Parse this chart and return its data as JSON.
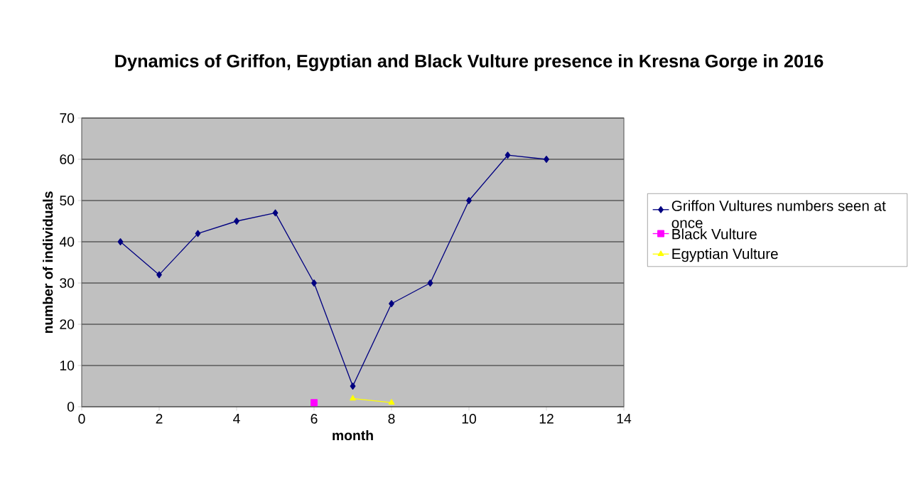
{
  "chart_data": {
    "type": "line",
    "title": "Dynamics of Griffon, Egyptian and Black Vulture presence in Kresna Gorge in 2016",
    "xlabel": "month",
    "ylabel": "number of individuals",
    "series": [
      {
        "name": "Griffon Vultures numbers seen at once",
        "color": "#000080",
        "marker": "diamond",
        "x": [
          1,
          2,
          3,
          4,
          5,
          6,
          7,
          8,
          9,
          10,
          11,
          12
        ],
        "values": [
          40,
          32,
          42,
          45,
          47,
          30,
          5,
          25,
          30,
          50,
          61,
          60
        ]
      },
      {
        "name": "Black Vulture",
        "color": "#ff00ff",
        "marker": "square",
        "x": [
          6
        ],
        "values": [
          1
        ]
      },
      {
        "name": "Egyptian Vulture",
        "color": "#ffff00",
        "marker": "triangle",
        "x": [
          7,
          8
        ],
        "values": [
          2,
          1
        ]
      }
    ],
    "xlim": [
      0,
      14
    ],
    "xticks": [
      0,
      2,
      4,
      6,
      8,
      10,
      12,
      14
    ],
    "ylim": [
      0,
      70
    ],
    "yticks": [
      0,
      10,
      20,
      30,
      40,
      50,
      60,
      70
    ],
    "grid": "y",
    "legend": "right"
  }
}
